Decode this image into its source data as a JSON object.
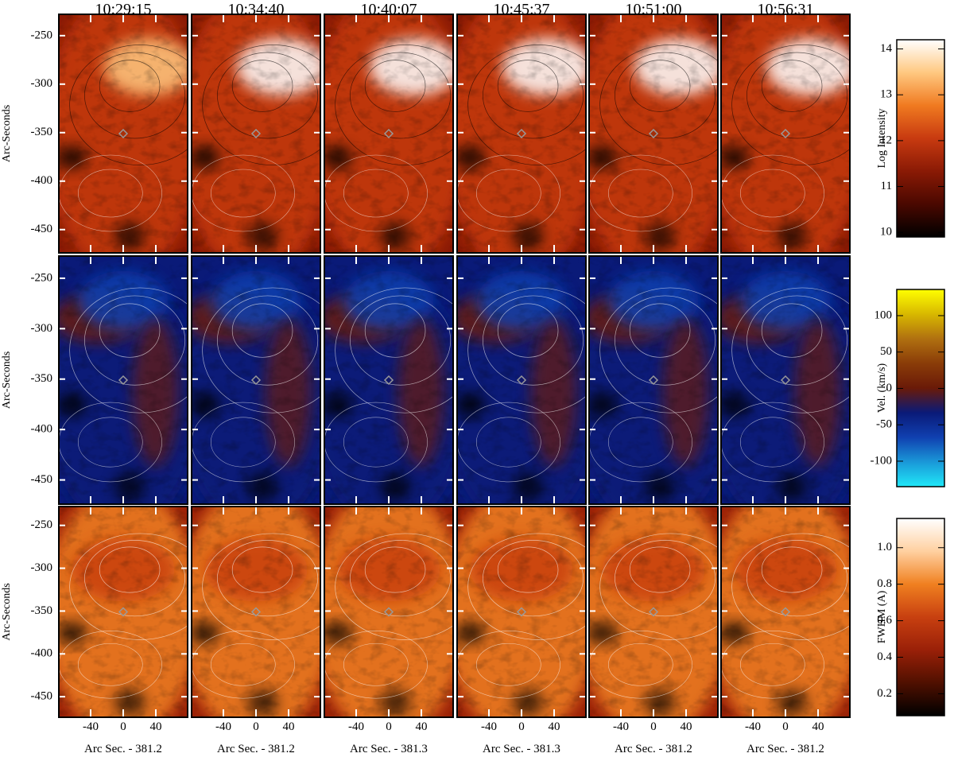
{
  "chart_data": {
    "type": "image-grid",
    "times": [
      "10:29:15",
      "10:34:40",
      "10:40:07",
      "10:45:37",
      "10:51:00",
      "10:56:31"
    ],
    "x_labels": [
      "Arc Sec. - 381.2",
      "Arc Sec. - 381.2",
      "Arc Sec. - 381.3",
      "Arc Sec. - 381.3",
      "Arc Sec. - 381.2",
      "Arc Sec. - 381.2"
    ],
    "y_label": "Arc-Seconds",
    "xlim": [
      -79,
      79
    ],
    "xticks": [
      -40,
      0,
      40
    ],
    "ylim": [
      -474,
      -228
    ],
    "yticks": [
      -250,
      -300,
      -350,
      -400,
      -450
    ],
    "rows": [
      {
        "colorbar_label": "Log Intensity",
        "clim": [
          9.9,
          14.2
        ],
        "cticks": [
          10,
          11,
          12,
          13,
          14
        ],
        "colors": [
          "#000000",
          "#4a0800",
          "#8a1a05",
          "#c83a10",
          "#f07a20",
          "#ffc880",
          "#ffffff"
        ]
      },
      {
        "colorbar_label": "Vel. (km/s)",
        "clim": [
          -135,
          136
        ],
        "cticks": [
          100,
          50,
          0,
          -50,
          -100
        ],
        "colors": [
          "#20e8f8",
          "#1a98d8",
          "#1040b0",
          "#0a1a78",
          "#6a1a08",
          "#8a3c08",
          "#b07010",
          "#d8b800",
          "#ffff00"
        ]
      },
      {
        "colorbar_label": "FWHM (A)",
        "clim": [
          0.08,
          1.16
        ],
        "cticks": [
          0.2,
          0.4,
          0.6,
          0.8,
          {
            "value": 1,
            "label": "1.0"
          }
        ],
        "colors": [
          "#000000",
          "#501000",
          "#9a2008",
          "#c84010",
          "#f08020",
          "#ffd0a0",
          "#ffffff"
        ]
      }
    ]
  }
}
